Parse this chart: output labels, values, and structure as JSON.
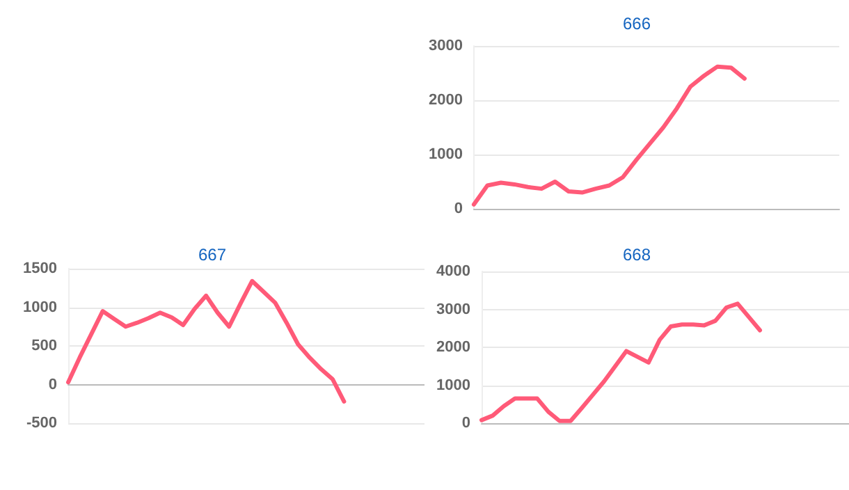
{
  "chart_data": [
    {
      "type": "line",
      "title": "666",
      "categories": [
        null,
        null,
        null,
        null,
        null,
        null,
        null,
        null,
        null,
        null,
        null,
        null,
        null,
        null,
        null,
        null,
        null,
        null,
        null,
        null,
        null,
        null,
        null,
        null,
        null,
        null,
        null,
        null
      ],
      "series": [
        {
          "color": "#ff5a78",
          "values": [
            80,
            430,
            480,
            450,
            400,
            370,
            500,
            320,
            300,
            370,
            430,
            580,
            900,
            1200,
            1500,
            1850,
            2250,
            2450,
            2620,
            2600,
            2400,
            null,
            null,
            null,
            null,
            null,
            null,
            null
          ]
        }
      ],
      "ylim": [
        0,
        3000
      ],
      "yticks": [
        0,
        1000,
        2000,
        3000
      ],
      "grid": "y",
      "marker": "none",
      "tick_labels": "y"
    },
    {
      "type": "line",
      "title": "667",
      "categories": [
        null,
        null,
        null,
        null,
        null,
        null,
        null,
        null,
        null,
        null,
        null,
        null,
        null,
        null,
        null,
        null,
        null,
        null,
        null,
        null,
        null,
        null,
        null,
        null,
        null,
        null,
        null,
        null,
        null,
        null,
        null,
        null
      ],
      "series": [
        {
          "color": "#ff5a78",
          "values": [
            30,
            350,
            650,
            950,
            850,
            750,
            800,
            860,
            930,
            870,
            770,
            980,
            1150,
            930,
            750,
            1050,
            1340,
            1200,
            1060,
            800,
            520,
            350,
            200,
            70,
            -220,
            null,
            null,
            null,
            null,
            null,
            null,
            null
          ]
        }
      ],
      "ylim": [
        -500,
        1500
      ],
      "yticks": [
        -500,
        0,
        500,
        1000,
        1500
      ],
      "grid": "y",
      "marker": "none",
      "tick_labels": "y"
    },
    {
      "type": "line",
      "title": "668",
      "categories": [
        null,
        null,
        null,
        null,
        null,
        null,
        null,
        null,
        null,
        null,
        null,
        null,
        null,
        null,
        null,
        null,
        null,
        null,
        null,
        null,
        null,
        null,
        null,
        null,
        null,
        null,
        null,
        null,
        null,
        null,
        null,
        null,
        null,
        null
      ],
      "series": [
        {
          "color": "#ff5a78",
          "values": [
            80,
            200,
            450,
            650,
            650,
            650,
            300,
            60,
            60,
            400,
            750,
            1100,
            1500,
            1900,
            1750,
            1600,
            2200,
            2550,
            2600,
            2600,
            2580,
            2700,
            3050,
            3150,
            2800,
            2450,
            null,
            null,
            null,
            null,
            null,
            null,
            null,
            null
          ]
        }
      ],
      "ylim": [
        0,
        4000
      ],
      "yticks": [
        0,
        1000,
        2000,
        3000,
        4000
      ],
      "grid": "y",
      "marker": "none",
      "tick_labels": "y"
    }
  ]
}
